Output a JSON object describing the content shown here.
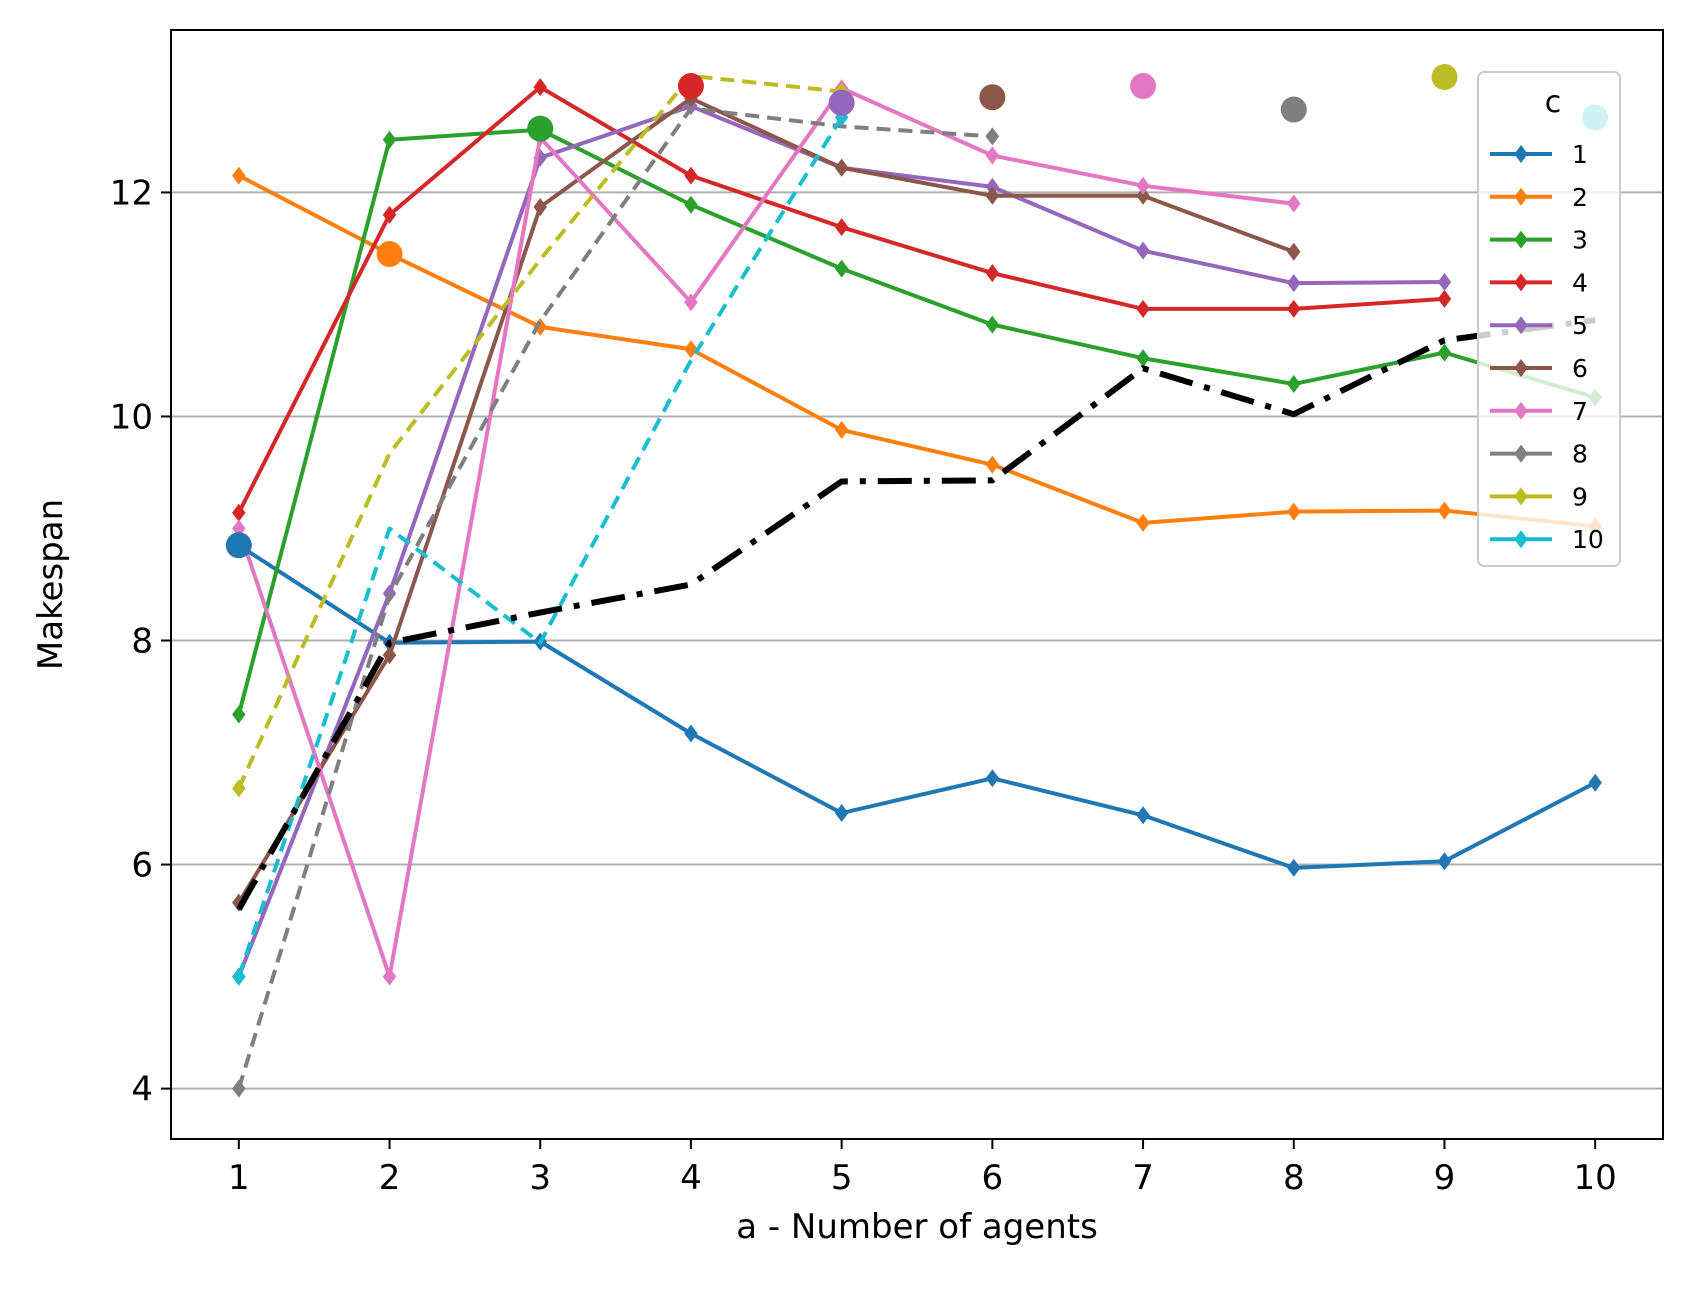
{
  "chart_data": {
    "type": "line",
    "title": "",
    "xlabel": "a - Number of agents",
    "ylabel": "Makespan",
    "xlim": [
      0.55,
      10.45
    ],
    "ylim": [
      3.55,
      13.45
    ],
    "xticks": [
      1,
      2,
      3,
      4,
      5,
      6,
      7,
      8,
      9,
      10
    ],
    "yticks": [
      4,
      6,
      8,
      10,
      12
    ],
    "grid": "horizontal",
    "legend": {
      "title": "c",
      "placement": "top-right"
    },
    "series": [
      {
        "name": "1",
        "color": "#1f77b4",
        "style": "solid-diamond",
        "x": [
          1,
          2,
          3,
          4,
          5,
          6,
          7,
          8,
          9,
          10
        ],
        "y": [
          8.85,
          7.98,
          7.99,
          7.17,
          6.46,
          6.77,
          6.44,
          5.97,
          6.03,
          6.73
        ]
      },
      {
        "name": "2",
        "color": "#ff7f0e",
        "style": "solid-diamond",
        "x": [
          1,
          2,
          3,
          4,
          5,
          6,
          7,
          8,
          9,
          10
        ],
        "y": [
          12.15,
          11.45,
          10.8,
          10.6,
          9.88,
          9.57,
          9.05,
          9.15,
          9.16,
          9.02
        ]
      },
      {
        "name": "3",
        "color": "#2ca02c",
        "style": "solid-diamond",
        "x": [
          1,
          2,
          3,
          4,
          5,
          6,
          7,
          8,
          9,
          10
        ],
        "y": [
          7.34,
          12.47,
          12.56,
          11.89,
          11.32,
          10.82,
          10.52,
          10.29,
          10.57,
          10.17
        ]
      },
      {
        "name": "4",
        "color": "#d62728",
        "style": "solid-diamond",
        "x": [
          1,
          2,
          3,
          4,
          5,
          6,
          7,
          8,
          9
        ],
        "y": [
          9.14,
          11.8,
          12.94,
          12.15,
          11.69,
          11.28,
          10.96,
          10.96,
          11.05
        ]
      },
      {
        "name": "5",
        "color": "#9467bd",
        "style": "solid-diamond",
        "x": [
          1,
          2,
          3,
          4,
          5,
          6,
          7,
          8,
          9
        ],
        "y": [
          5.0,
          8.42,
          12.31,
          12.77,
          12.22,
          12.05,
          11.48,
          11.19,
          11.2
        ]
      },
      {
        "name": "6",
        "color": "#8c564b",
        "style": "solid-diamond",
        "x": [
          1,
          2,
          3,
          4,
          5,
          6,
          7,
          8
        ],
        "y": [
          5.66,
          7.87,
          11.87,
          12.84,
          12.22,
          11.97,
          11.97,
          11.47
        ]
      },
      {
        "name": "7",
        "color": "#e377c2",
        "style": "solid-diamond",
        "x": [
          1,
          2,
          3,
          4,
          5,
          6,
          7,
          8
        ],
        "y": [
          9.0,
          5.0,
          12.49,
          11.02,
          12.93,
          12.33,
          12.06,
          11.9
        ]
      },
      {
        "name": "8",
        "color": "#7f7f7f",
        "style": "dashed",
        "x": [
          1,
          2,
          3,
          4,
          5,
          6
        ],
        "y": [
          4.0,
          8.4,
          10.85,
          12.75,
          12.59,
          12.5
        ]
      },
      {
        "name": "9",
        "color": "#bcbd22",
        "style": "dashed",
        "x": [
          1,
          2,
          3,
          4,
          5
        ],
        "y": [
          6.68,
          9.67,
          11.4,
          13.04,
          12.9
        ]
      },
      {
        "name": "10",
        "color": "#17becf",
        "style": "dashed",
        "x": [
          1,
          2,
          3,
          4,
          5
        ],
        "y": [
          5.0,
          9.0,
          7.98,
          10.5,
          12.67
        ]
      }
    ],
    "extra_lines": [
      {
        "color": "#000000",
        "style": "dashdot",
        "x": [
          1,
          2,
          3,
          4,
          5,
          6,
          7,
          8,
          9,
          10
        ],
        "y": [
          5.6,
          7.98,
          8.25,
          8.5,
          9.42,
          9.43,
          10.43,
          10.02,
          10.68,
          10.86
        ]
      }
    ],
    "endpoint_markers": [
      {
        "color": "#1f77b4",
        "x": 1,
        "y": 8.85
      },
      {
        "color": "#ff7f0e",
        "x": 2,
        "y": 11.45
      },
      {
        "color": "#2ca02c",
        "x": 3,
        "y": 12.57
      },
      {
        "color": "#d62728",
        "x": 4,
        "y": 12.95
      },
      {
        "color": "#9467bd",
        "x": 5,
        "y": 12.8
      },
      {
        "color": "#8c564b",
        "x": 6,
        "y": 12.85
      },
      {
        "color": "#e377c2",
        "x": 7,
        "y": 12.95
      },
      {
        "color": "#7f7f7f",
        "x": 8,
        "y": 12.74
      },
      {
        "color": "#bcbd22",
        "x": 9,
        "y": 13.03
      },
      {
        "color": "#17becf",
        "x": 10,
        "y": 12.67
      }
    ]
  }
}
